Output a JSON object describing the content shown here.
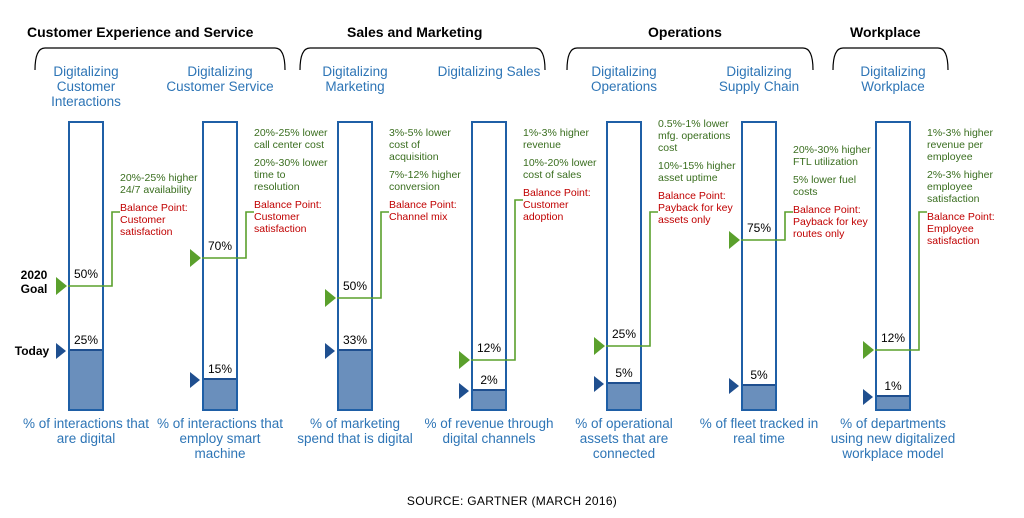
{
  "groups": [
    {
      "title": "Customer Experience and Service"
    },
    {
      "title": "Sales and Marketing"
    },
    {
      "title": "Operations"
    },
    {
      "title": "Workplace"
    }
  ],
  "row_labels": {
    "goal": "2020\nGoal",
    "today": "Today"
  },
  "columns": [
    {
      "title": "Digitalizing Customer Interactions",
      "today_pct": 25,
      "today_label": "25%",
      "goal_pct": 50,
      "goal_label": "50%",
      "benefits": [
        "20%-25% higher 24/7 availability"
      ],
      "balance": "Balance Point: Customer satisfaction",
      "metric": "% of interactions that are digital"
    },
    {
      "title": "Digitalizing Customer Service",
      "today_pct": 15,
      "today_label": "15%",
      "goal_pct": 70,
      "goal_label": "70%",
      "benefits": [
        "20%-25% lower call center cost",
        "20%-30% lower time to resolution"
      ],
      "balance": "Balance Point: Customer satisfaction",
      "metric": "% of interactions that employ smart machine"
    },
    {
      "title": "Digitalizing Marketing",
      "today_pct": 33,
      "today_label": "33%",
      "goal_pct": 50,
      "goal_label": "50%",
      "benefits": [
        "3%-5% lower cost of acquisition",
        "7%-12% higher conversion"
      ],
      "balance": "Balance Point: Channel mix",
      "metric": "% of marketing spend that is digital"
    },
    {
      "title": "Digitalizing Sales",
      "today_pct": 2,
      "today_label": "2%",
      "goal_pct": 12,
      "goal_label": "12%",
      "benefits": [
        "1%-3% higher revenue",
        "10%-20% lower cost of sales"
      ],
      "balance": "Balance Point: Customer adoption",
      "metric": "% of revenue through digital channels"
    },
    {
      "title": "Digitalizing Operations",
      "today_pct": 5,
      "today_label": "5%",
      "goal_pct": 25,
      "goal_label": "25%",
      "benefits": [
        "0.5%-1% lower mfg. operations cost",
        "10%-15% higher asset uptime"
      ],
      "balance": "Balance Point: Payback for key assets only",
      "metric": "% of operational assets that are connected"
    },
    {
      "title": "Digitalizing Supply Chain",
      "today_pct": 5,
      "today_label": "5%",
      "goal_pct": 75,
      "goal_label": "75%",
      "benefits": [
        "20%-30% higher FTL utilization",
        "5% lower fuel costs"
      ],
      "balance": "Balance Point: Payback for key routes only",
      "metric": "% of fleet tracked in real time"
    },
    {
      "title": "Digitalizing Workplace",
      "today_pct": 1,
      "today_label": "1%",
      "goal_pct": 12,
      "goal_label": "12%",
      "benefits": [
        "1%-3% higher revenue per employee",
        "2%-3% higher employee satisfaction"
      ],
      "balance": "Balance Point: Employee satisfaction",
      "metric": "% of departments using new digitalized workplace model"
    }
  ],
  "source": "SOURCE: GARTNER (MARCH 2016)",
  "colors": {
    "bar_border": "#1f5fa6",
    "fill": "#6a8fbc",
    "goal_marker": "#5aa02c",
    "today_marker": "#1f4f8f",
    "title_blue": "#2e75b6",
    "benefit_green": "#3a6e1f",
    "balance_red": "#c00000"
  }
}
